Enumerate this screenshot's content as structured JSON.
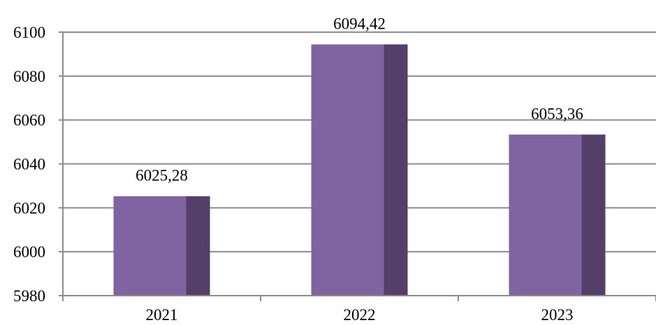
{
  "chart_data": {
    "type": "bar",
    "categories": [
      "2021",
      "2022",
      "2023"
    ],
    "values": [
      6025.28,
      6094.42,
      6053.36
    ],
    "data_labels": [
      "6025,28",
      "6094,42",
      "6053,36"
    ],
    "title": "",
    "xlabel": "",
    "ylabel": "",
    "ylim": [
      5980,
      6100
    ],
    "yticks": [
      5980,
      6000,
      6020,
      6040,
      6060,
      6080,
      6100
    ],
    "grid": true,
    "legend": "none",
    "colors": {
      "bar_face": "#8064A2",
      "bar_side": "#533F6A",
      "gridline": "#8C8C8C",
      "axis": "#8C8C8C",
      "text": "#000000"
    }
  }
}
